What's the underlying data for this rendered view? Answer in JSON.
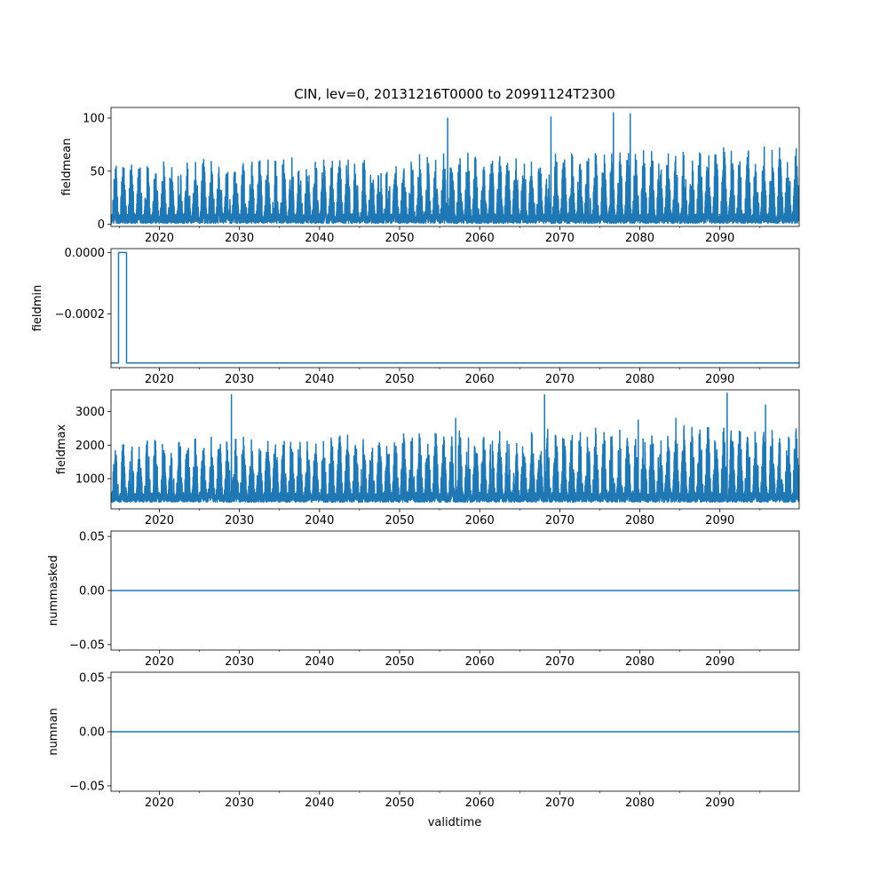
{
  "title": "CIN, lev=0, 20131216T0000 to 20991124T2300",
  "xlabel": "validtime",
  "line_color": "#1f77b4",
  "chart_data": [
    {
      "type": "line",
      "ylabel": "fieldmean",
      "xlim": [
        2013.96,
        2099.9
      ],
      "ylim": [
        -2,
        110
      ],
      "x_ticks": [
        "2020",
        "2030",
        "2040",
        "2050",
        "2060",
        "2070",
        "2080",
        "2090"
      ],
      "y_ticks": [
        {
          "value": 0,
          "label": "0"
        },
        {
          "value": 50,
          "label": "50"
        },
        {
          "value": 100,
          "label": "100"
        }
      ],
      "series_summary": {
        "x_range": [
          2013.96,
          2099.9
        ],
        "cycle": "annual",
        "typical_min": 1,
        "typical_max": 60,
        "peak_max": 105,
        "notable_peaks": [
          {
            "x": 2056.0,
            "y": 100
          },
          {
            "x": 2068.9,
            "y": 101
          },
          {
            "x": 2076.7,
            "y": 105
          },
          {
            "x": 2078.8,
            "y": 104
          }
        ]
      }
    },
    {
      "type": "line",
      "ylabel": "fieldmin",
      "xlim": [
        2013.96,
        2099.9
      ],
      "ylim": [
        -0.000375,
        1.25e-05
      ],
      "x_ticks": [
        "2020",
        "2030",
        "2040",
        "2050",
        "2060",
        "2070",
        "2080",
        "2090"
      ],
      "y_ticks": [
        {
          "value": 0,
          "label": "0.0000"
        },
        {
          "value": -0.0002,
          "label": "−0.0002"
        }
      ],
      "points": [
        {
          "x": 2013.96,
          "y": -0.00036
        },
        {
          "x": 2014.9,
          "y": -0.00036
        },
        {
          "x": 2014.9,
          "y": 0.0
        },
        {
          "x": 2015.9,
          "y": 0.0
        },
        {
          "x": 2015.9,
          "y": -0.00036
        },
        {
          "x": 2099.9,
          "y": -0.00036
        }
      ]
    },
    {
      "type": "line",
      "ylabel": "fieldmax",
      "xlim": [
        2013.96,
        2099.9
      ],
      "ylim": [
        100,
        3650
      ],
      "x_ticks": [
        "2020",
        "2030",
        "2040",
        "2050",
        "2060",
        "2070",
        "2080",
        "2090"
      ],
      "y_ticks": [
        {
          "value": 1000,
          "label": "1000"
        },
        {
          "value": 2000,
          "label": "2000"
        },
        {
          "value": 3000,
          "label": "3000"
        }
      ],
      "series_summary": {
        "x_range": [
          2013.96,
          2099.9
        ],
        "cycle": "annual",
        "typical_min": 300,
        "typical_max": 2200,
        "peak_max": 3550,
        "notable_peaks": [
          {
            "x": 2029.0,
            "y": 3500
          },
          {
            "x": 2057.0,
            "y": 2800
          },
          {
            "x": 2068.1,
            "y": 3500
          },
          {
            "x": 2079.8,
            "y": 2750
          },
          {
            "x": 2084.5,
            "y": 2800
          },
          {
            "x": 2090.9,
            "y": 3550
          },
          {
            "x": 2095.7,
            "y": 3200
          }
        ]
      }
    },
    {
      "type": "line",
      "ylabel": "nummasked",
      "xlim": [
        2013.96,
        2099.9
      ],
      "ylim": [
        -0.055,
        0.055
      ],
      "x_ticks": [
        "2020",
        "2030",
        "2040",
        "2050",
        "2060",
        "2070",
        "2080",
        "2090"
      ],
      "y_ticks": [
        {
          "value": 0.05,
          "label": "0.05"
        },
        {
          "value": 0,
          "label": "0.00"
        },
        {
          "value": -0.05,
          "label": "−0.05"
        }
      ],
      "points": [
        {
          "x": 2013.96,
          "y": 0
        },
        {
          "x": 2099.9,
          "y": 0
        }
      ]
    },
    {
      "type": "line",
      "ylabel": "numnan",
      "xlim": [
        2013.96,
        2099.9
      ],
      "ylim": [
        -0.055,
        0.055
      ],
      "x_ticks": [
        "2020",
        "2030",
        "2040",
        "2050",
        "2060",
        "2070",
        "2080",
        "2090"
      ],
      "y_ticks": [
        {
          "value": 0.05,
          "label": "0.05"
        },
        {
          "value": 0,
          "label": "0.00"
        },
        {
          "value": -0.05,
          "label": "−0.05"
        }
      ],
      "points": [
        {
          "x": 2013.96,
          "y": 0
        },
        {
          "x": 2099.9,
          "y": 0
        }
      ]
    }
  ]
}
